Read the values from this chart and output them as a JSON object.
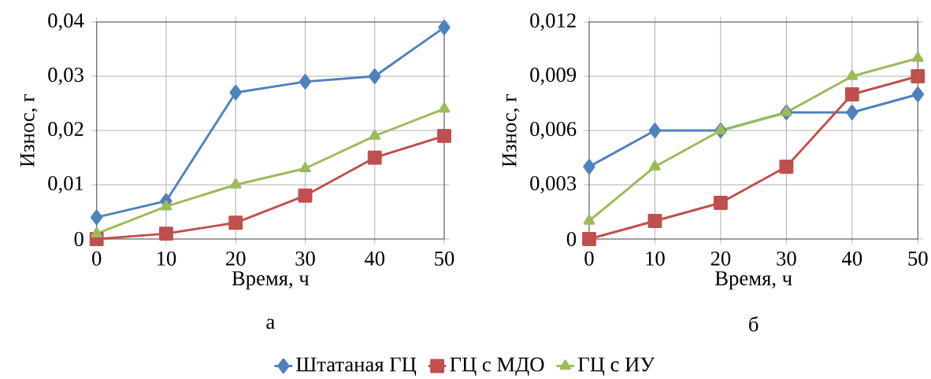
{
  "chart_data": [
    {
      "type": "line",
      "subtitle": "а",
      "xlabel": "Время, ч",
      "ylabel": "Износ, г",
      "x": [
        0,
        10,
        20,
        30,
        40,
        50
      ],
      "xlim": [
        0,
        50
      ],
      "xticks": [
        0,
        10,
        20,
        30,
        40,
        50
      ],
      "ylim": [
        0,
        0.04
      ],
      "yticks": [
        0,
        {
          "value": 0.01,
          "label": "0,01"
        },
        {
          "value": 0.02,
          "label": "0,02"
        },
        {
          "value": 0.03,
          "label": "0,03"
        },
        {
          "value": 0.04,
          "label": "0,04"
        }
      ],
      "grid": true,
      "legend": "bottom",
      "series": [
        {
          "name": "Штатаная ГЦ",
          "color": "#4f81bd",
          "marker": "diamond",
          "values": [
            0.004,
            0.007,
            0.027,
            0.029,
            0.03,
            0.039
          ]
        },
        {
          "name": "ГЦ с МДО",
          "color": "#c0504d",
          "marker": "square",
          "values": [
            0,
            0.001,
            0.003,
            0.008,
            0.015,
            0.019
          ]
        },
        {
          "name": "ГЦ с ИУ",
          "color": "#9bbb59",
          "marker": "triangle",
          "values": [
            0.001,
            0.006,
            0.01,
            0.013,
            0.019,
            0.024
          ]
        }
      ]
    },
    {
      "type": "line",
      "subtitle": "б",
      "xlabel": "Время, ч",
      "ylabel": "Износ, г",
      "x": [
        0,
        10,
        20,
        30,
        40,
        50
      ],
      "xlim": [
        0,
        50
      ],
      "xticks": [
        0,
        10,
        20,
        30,
        40,
        50
      ],
      "ylim": [
        0,
        0.012
      ],
      "yticks": [
        0,
        {
          "value": 0.003,
          "label": "0,003"
        },
        {
          "value": 0.006,
          "label": "0,006"
        },
        {
          "value": 0.009,
          "label": "0,009"
        },
        {
          "value": 0.012,
          "label": "0,012"
        }
      ],
      "grid": true,
      "series": [
        {
          "color": "#4f81bd",
          "marker": "diamond",
          "values": [
            0.004,
            0.006,
            0.006,
            0.007,
            0.007,
            0.008
          ]
        },
        {
          "color": "#c0504d",
          "marker": "square",
          "values": [
            0,
            0.001,
            0.002,
            0.004,
            0.008,
            0.009
          ]
        },
        {
          "color": "#9bbb59",
          "marker": "triangle",
          "values": [
            0.001,
            0.004,
            0.006,
            0.007,
            0.009,
            0.01
          ]
        }
      ]
    }
  ]
}
